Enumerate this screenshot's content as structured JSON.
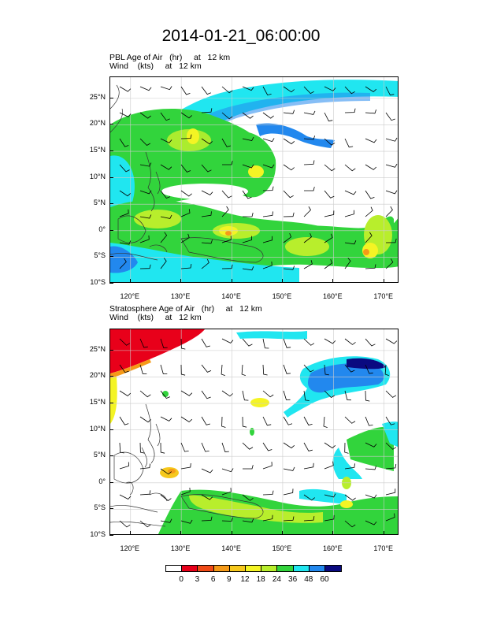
{
  "title": "2014-01-21_06:00:00",
  "panels": [
    {
      "id": "pbl",
      "line1": "PBL Age of Air   (hr)     at   12 km",
      "line2": "Wind    (kts)     at   12 km"
    },
    {
      "id": "strat",
      "line1": "Stratosphere Age of Air   (hr)     at   12 km",
      "line2": "Wind    (kts)     at   12 km"
    }
  ],
  "lat_labels": [
    "25°N",
    "20°N",
    "15°N",
    "10°N",
    "5°N",
    "0°",
    "5°S",
    "10°S"
  ],
  "lat_values": [
    25,
    20,
    15,
    10,
    5,
    0,
    -5,
    -10
  ],
  "lon_labels": [
    "120°E",
    "130°E",
    "140°E",
    "150°E",
    "160°E",
    "170°E"
  ],
  "lon_values": [
    120,
    130,
    140,
    150,
    160,
    170
  ],
  "map_extent": {
    "lon_min": 116,
    "lon_max": 173,
    "lat_min": -10,
    "lat_max": 29
  },
  "colorbar": {
    "labels": [
      "0",
      "3",
      "6",
      "9",
      "12",
      "18",
      "24",
      "36",
      "48",
      "60"
    ],
    "colors": [
      "#ffffff",
      "#e8001a",
      "#f04a16",
      "#f59a18",
      "#f6c81c",
      "#f4f424",
      "#b8ee2c",
      "#32d43c",
      "#20e6f0",
      "#2288ee",
      "#0a0a80"
    ]
  }
}
